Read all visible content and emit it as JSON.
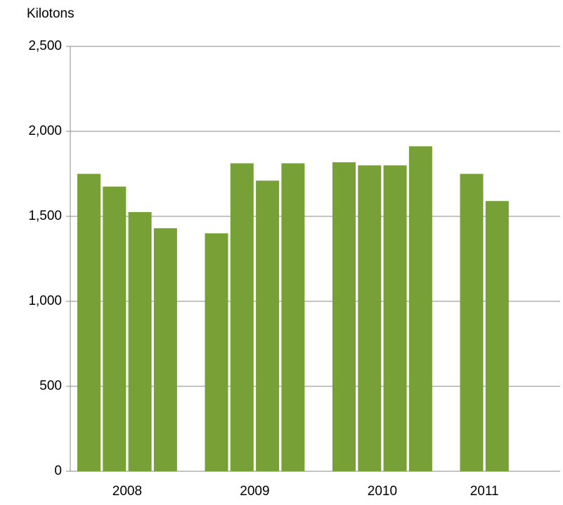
{
  "chart_data": {
    "type": "bar",
    "y_axis_label": "Kilotons",
    "groups": [
      {
        "label": "2008",
        "values": [
          1750,
          1675,
          1525,
          1430
        ]
      },
      {
        "label": "2009",
        "values": [
          1400,
          1812,
          1710,
          1812
        ]
      },
      {
        "label": "2010",
        "values": [
          1818,
          1800,
          1800,
          1912
        ]
      },
      {
        "label": "2011",
        "values": [
          1750,
          1590
        ]
      }
    ],
    "color": "#77a136",
    "ylim": [
      0,
      2500
    ],
    "yticks": [
      0,
      500,
      {
        "value": 1000,
        "label": "1,000"
      },
      {
        "value": 1500,
        "label": "1,500"
      },
      {
        "value": 2000,
        "label": "2,000"
      },
      {
        "value": 2500,
        "label": "2,500"
      }
    ],
    "grid": true
  }
}
